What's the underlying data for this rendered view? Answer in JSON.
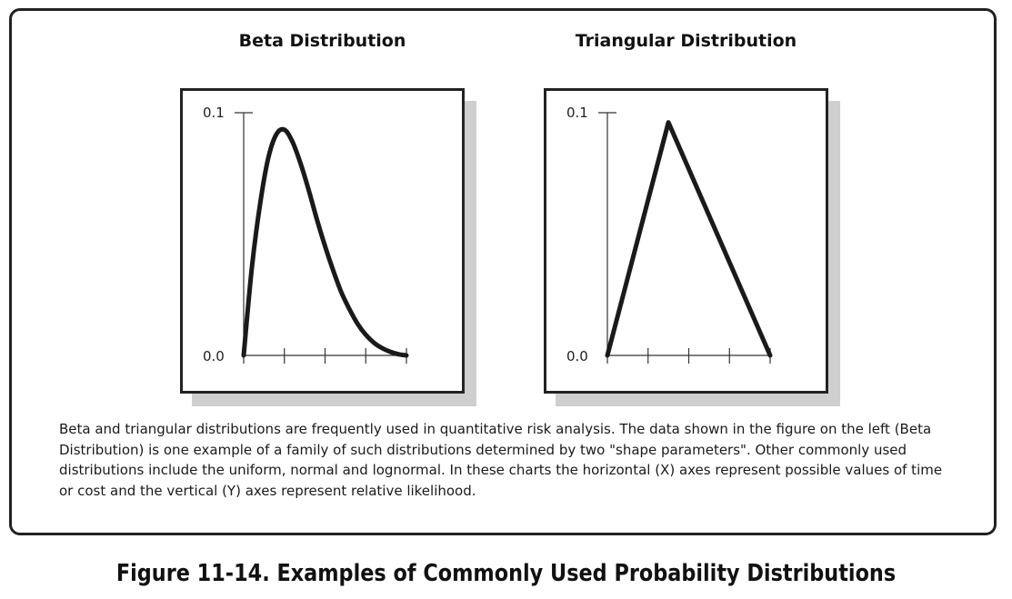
{
  "chart_data": [
    {
      "type": "line",
      "title": "Beta Distribution",
      "y_tick_labels": [
        "0.0",
        "0.1"
      ],
      "ylim": [
        0,
        0.1
      ],
      "xlim": [
        0,
        4
      ],
      "x_ticks": [
        0,
        1,
        2,
        3,
        4
      ],
      "x": [
        0,
        0.2,
        0.4,
        0.6,
        0.8,
        1.0,
        1.2,
        1.4,
        1.6,
        1.8,
        2.0,
        2.2,
        2.4,
        2.6,
        2.8,
        3.0,
        3.2,
        3.4,
        3.6,
        3.8,
        4.0
      ],
      "y": [
        0,
        0.036,
        0.062,
        0.081,
        0.091,
        0.093,
        0.088,
        0.079,
        0.068,
        0.056,
        0.045,
        0.035,
        0.026,
        0.019,
        0.013,
        0.0085,
        0.0052,
        0.003,
        0.0015,
        0.0005,
        0
      ]
    },
    {
      "type": "line",
      "title": "Triangular Distribution",
      "y_tick_labels": [
        "0.0",
        "0.1"
      ],
      "ylim": [
        0,
        0.1
      ],
      "xlim": [
        0,
        4
      ],
      "x_ticks": [
        0,
        1,
        2,
        3,
        4
      ],
      "x": [
        0,
        1.5,
        4
      ],
      "y": [
        0,
        0.096,
        0
      ]
    }
  ],
  "caption": "Beta and triangular distributions are frequently used in quantitative risk analysis. The data shown in the figure on the left (Beta Distribution) is one example of a family of such distributions determined by two \"shape parameters\". Other commonly used distributions include the uniform, normal and lognormal. In these charts the horizontal (X) axes represent possible values of time or cost and the vertical (Y) axes represent relative likelihood.",
  "figure_title": "Figure 11-14. Examples of Commonly Used Probability Distributions"
}
